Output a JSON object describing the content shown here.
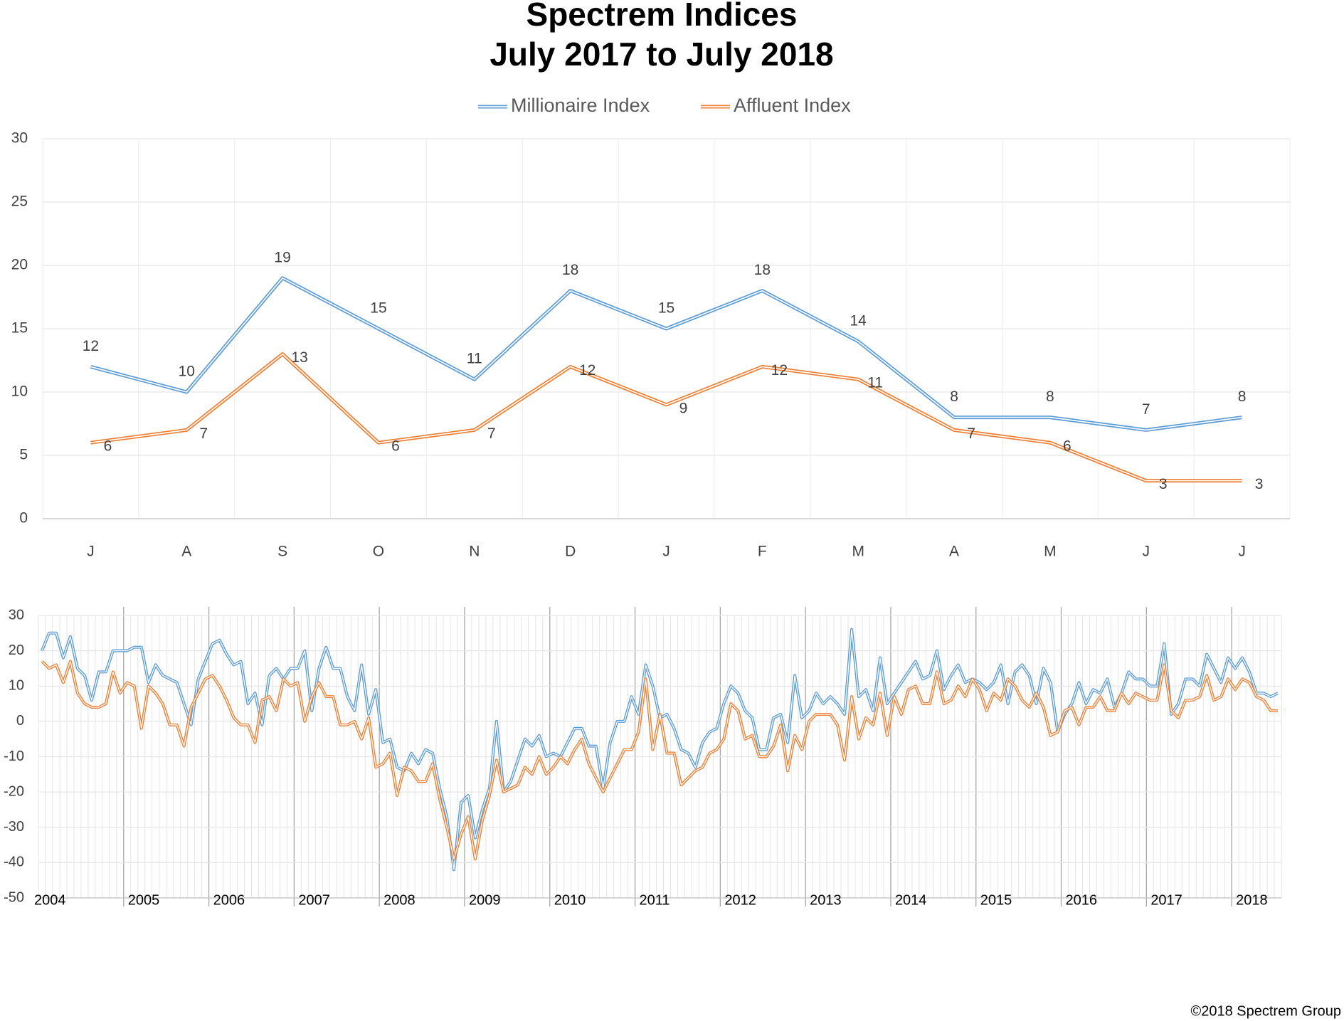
{
  "chart_data": [
    {
      "type": "line",
      "title": "Spectrem Indices",
      "subtitle": "July 2017 to July 2018",
      "categories": [
        "J",
        "A",
        "S",
        "O",
        "N",
        "D",
        "J",
        "F",
        "M",
        "A",
        "M",
        "J",
        "J"
      ],
      "series": [
        {
          "name": "Millionaire Index",
          "color": "#5b9bd5",
          "values": [
            12,
            10,
            19,
            15,
            11,
            18,
            15,
            18,
            14,
            8,
            8,
            7,
            8
          ]
        },
        {
          "name": "Affluent Index",
          "color": "#ed7d31",
          "values": [
            6,
            7,
            13,
            6,
            7,
            12,
            9,
            12,
            11,
            7,
            6,
            3,
            3
          ]
        }
      ],
      "ylim": [
        0,
        30
      ],
      "yticks": [
        0,
        5,
        10,
        15,
        20,
        25,
        30
      ],
      "grid": true,
      "legend": "top",
      "data_labels": true
    },
    {
      "type": "line",
      "categories": [
        "2004",
        null,
        null,
        null,
        null,
        null,
        null,
        null,
        null,
        null,
        null,
        null,
        "2005",
        null,
        null,
        null,
        null,
        null,
        null,
        null,
        null,
        null,
        null,
        null,
        "2006",
        null,
        null,
        null,
        null,
        null,
        null,
        null,
        null,
        null,
        null,
        null,
        "2007",
        null,
        null,
        null,
        null,
        null,
        null,
        null,
        null,
        null,
        null,
        null,
        "2008",
        null,
        null,
        null,
        null,
        null,
        null,
        null,
        null,
        null,
        null,
        null,
        "2009",
        null,
        null,
        null,
        null,
        null,
        null,
        null,
        null,
        null,
        null,
        null,
        "2010",
        null,
        null,
        null,
        null,
        null,
        null,
        null,
        null,
        null,
        null,
        null,
        "2011",
        null,
        null,
        null,
        null,
        null,
        null,
        null,
        null,
        null,
        null,
        null,
        "2012",
        null,
        null,
        null,
        null,
        null,
        null,
        null,
        null,
        null,
        null,
        null,
        "2013",
        null,
        null,
        null,
        null,
        null,
        null,
        null,
        null,
        null,
        null,
        null,
        "2014",
        null,
        null,
        null,
        null,
        null,
        null,
        null,
        null,
        null,
        null,
        null,
        "2015",
        null,
        null,
        null,
        null,
        null,
        null,
        null,
        null,
        null,
        null,
        null,
        "2016",
        null,
        null,
        null,
        null,
        null,
        null,
        null,
        null,
        null,
        null,
        null,
        "2017",
        null,
        null,
        null,
        null,
        null,
        null,
        null,
        null,
        null,
        null,
        null,
        "2018",
        null,
        null,
        null,
        null,
        null,
        null
      ],
      "series": [
        {
          "name": "Millionaire Index",
          "color": "#5b9bd5",
          "values": [
            20,
            25,
            25,
            18,
            24,
            15,
            13,
            6,
            14,
            14,
            20,
            20,
            20,
            21,
            21,
            11,
            16,
            13,
            12,
            11,
            5,
            -1,
            12,
            17,
            22,
            23,
            19,
            16,
            17,
            5,
            8,
            -1,
            13,
            15,
            12,
            15,
            15,
            20,
            3,
            15,
            21,
            15,
            15,
            7,
            3,
            16,
            2,
            9,
            -6,
            -5,
            -13,
            -14,
            -9,
            -12,
            -8,
            -9,
            -19,
            -27,
            -42,
            -23,
            -21,
            -33,
            -25,
            -19,
            0,
            -20,
            -17,
            -11,
            -5,
            -7,
            -4,
            -10,
            -9,
            -10,
            -6,
            -2,
            -2,
            -7,
            -7,
            -19,
            -6,
            0,
            0,
            7,
            2,
            16,
            10,
            1,
            2,
            -2,
            -8,
            -9,
            -13,
            -6,
            -3,
            -2,
            5,
            10,
            8,
            3,
            1,
            -8,
            -8,
            1,
            2,
            -6,
            13,
            1,
            3,
            8,
            5,
            7,
            5,
            2,
            26,
            7,
            9,
            3,
            18,
            5,
            8,
            11,
            14,
            17,
            12,
            13,
            20,
            9,
            13,
            16,
            11,
            12,
            11,
            9,
            11,
            16,
            5,
            14,
            16,
            13,
            5,
            15,
            11,
            -3,
            2,
            5,
            11,
            5,
            9,
            8,
            12,
            4,
            8,
            14,
            12,
            12,
            10,
            10,
            22,
            2,
            5,
            12,
            12,
            10,
            19,
            15,
            11,
            18,
            15,
            18,
            14,
            8,
            8,
            7,
            8
          ]
        },
        {
          "name": "Affluent Index",
          "color": "#ed7d31",
          "values": [
            17,
            15,
            16,
            11,
            17,
            8,
            5,
            4,
            4,
            5,
            14,
            8,
            11,
            10,
            -2,
            10,
            8,
            5,
            -1,
            -1,
            -7,
            4,
            8,
            12,
            13,
            10,
            6,
            1,
            -1,
            -1,
            -6,
            6,
            7,
            3,
            12,
            10,
            11,
            0,
            7,
            11,
            7,
            7,
            -1,
            -1,
            0,
            -5,
            1,
            -13,
            -12,
            -9,
            -21,
            -13,
            -14,
            -17,
            -17,
            -12,
            -22,
            -30,
            -39,
            -32,
            -27,
            -39,
            -28,
            -21,
            -11,
            -20,
            -19,
            -18,
            -13,
            -15,
            -10,
            -15,
            -13,
            -10,
            -12,
            -8,
            -5,
            -12,
            -16,
            -20,
            -16,
            -12,
            -8,
            -8,
            -3,
            12,
            -8,
            2,
            -9,
            -9,
            -18,
            -16,
            -14,
            -13,
            -9,
            -8,
            -5,
            5,
            3,
            -5,
            -4,
            -10,
            -10,
            -7,
            -1,
            -14,
            -4,
            -8,
            0,
            2,
            2,
            2,
            -1,
            -11,
            7,
            -5,
            1,
            -1,
            8,
            -4,
            7,
            2,
            9,
            10,
            5,
            5,
            14,
            5,
            6,
            10,
            7,
            12,
            9,
            3,
            8,
            6,
            12,
            10,
            6,
            4,
            8,
            4,
            -4,
            -3,
            3,
            4,
            -1,
            4,
            4,
            7,
            3,
            3,
            8,
            5,
            8,
            7,
            6,
            6,
            16,
            3,
            1,
            6,
            6,
            7,
            13,
            6,
            7,
            12,
            9,
            12,
            11,
            7,
            6,
            3,
            3
          ]
        }
      ],
      "ylim": [
        -50,
        30
      ],
      "yticks": [
        -50,
        -40,
        -30,
        -20,
        -10,
        0,
        10,
        20,
        30
      ],
      "grid": true
    }
  ],
  "footer": "©2018 Spectrem Group"
}
